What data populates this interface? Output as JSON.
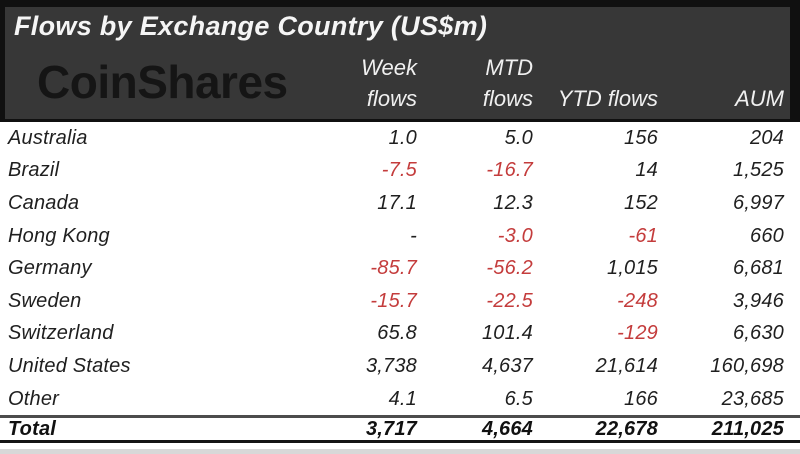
{
  "header": {
    "title": "Flows by Exchange Country (US$m)",
    "logo_text": "CoinShares",
    "col_week_line1": "Week",
    "col_week_line2": "flows",
    "col_mtd_line1": "MTD",
    "col_mtd_line2": "flows",
    "col_ytd": "YTD flows",
    "col_aum": "AUM"
  },
  "chart_data": {
    "type": "table",
    "title": "Flows by Exchange Country (US$m)",
    "brand": "CoinShares",
    "columns": [
      "Week flows",
      "MTD flows",
      "YTD flows",
      "AUM"
    ],
    "rows": [
      {
        "country": "Australia",
        "week": "1.0",
        "mtd": "5.0",
        "ytd": "156",
        "aum": "204"
      },
      {
        "country": "Brazil",
        "week": "-7.5",
        "mtd": "-16.7",
        "ytd": "14",
        "aum": "1,525"
      },
      {
        "country": "Canada",
        "week": "17.1",
        "mtd": "12.3",
        "ytd": "152",
        "aum": "6,997"
      },
      {
        "country": "Hong Kong",
        "week": "-",
        "mtd": "-3.0",
        "ytd": "-61",
        "aum": "660"
      },
      {
        "country": "Germany",
        "week": "-85.7",
        "mtd": "-56.2",
        "ytd": "1,015",
        "aum": "6,681"
      },
      {
        "country": "Sweden",
        "week": "-15.7",
        "mtd": "-22.5",
        "ytd": "-248",
        "aum": "3,946"
      },
      {
        "country": "Switzerland",
        "week": "65.8",
        "mtd": "101.4",
        "ytd": "-129",
        "aum": "6,630"
      },
      {
        "country": "United States",
        "week": "3,738",
        "mtd": "4,637",
        "ytd": "21,614",
        "aum": "160,698"
      },
      {
        "country": "Other",
        "week": "4.1",
        "mtd": "6.5",
        "ytd": "166",
        "aum": "23,685"
      }
    ],
    "total": {
      "label": "Total",
      "week": "3,717",
      "mtd": "4,664",
      "ytd": "22,678",
      "aum": "211,025"
    },
    "colors": {
      "negative": "#c43c3c",
      "panel": "#373737",
      "frame": "#101010",
      "header_text": "#f0f0f0",
      "body_text": "#1f1f1f"
    }
  }
}
